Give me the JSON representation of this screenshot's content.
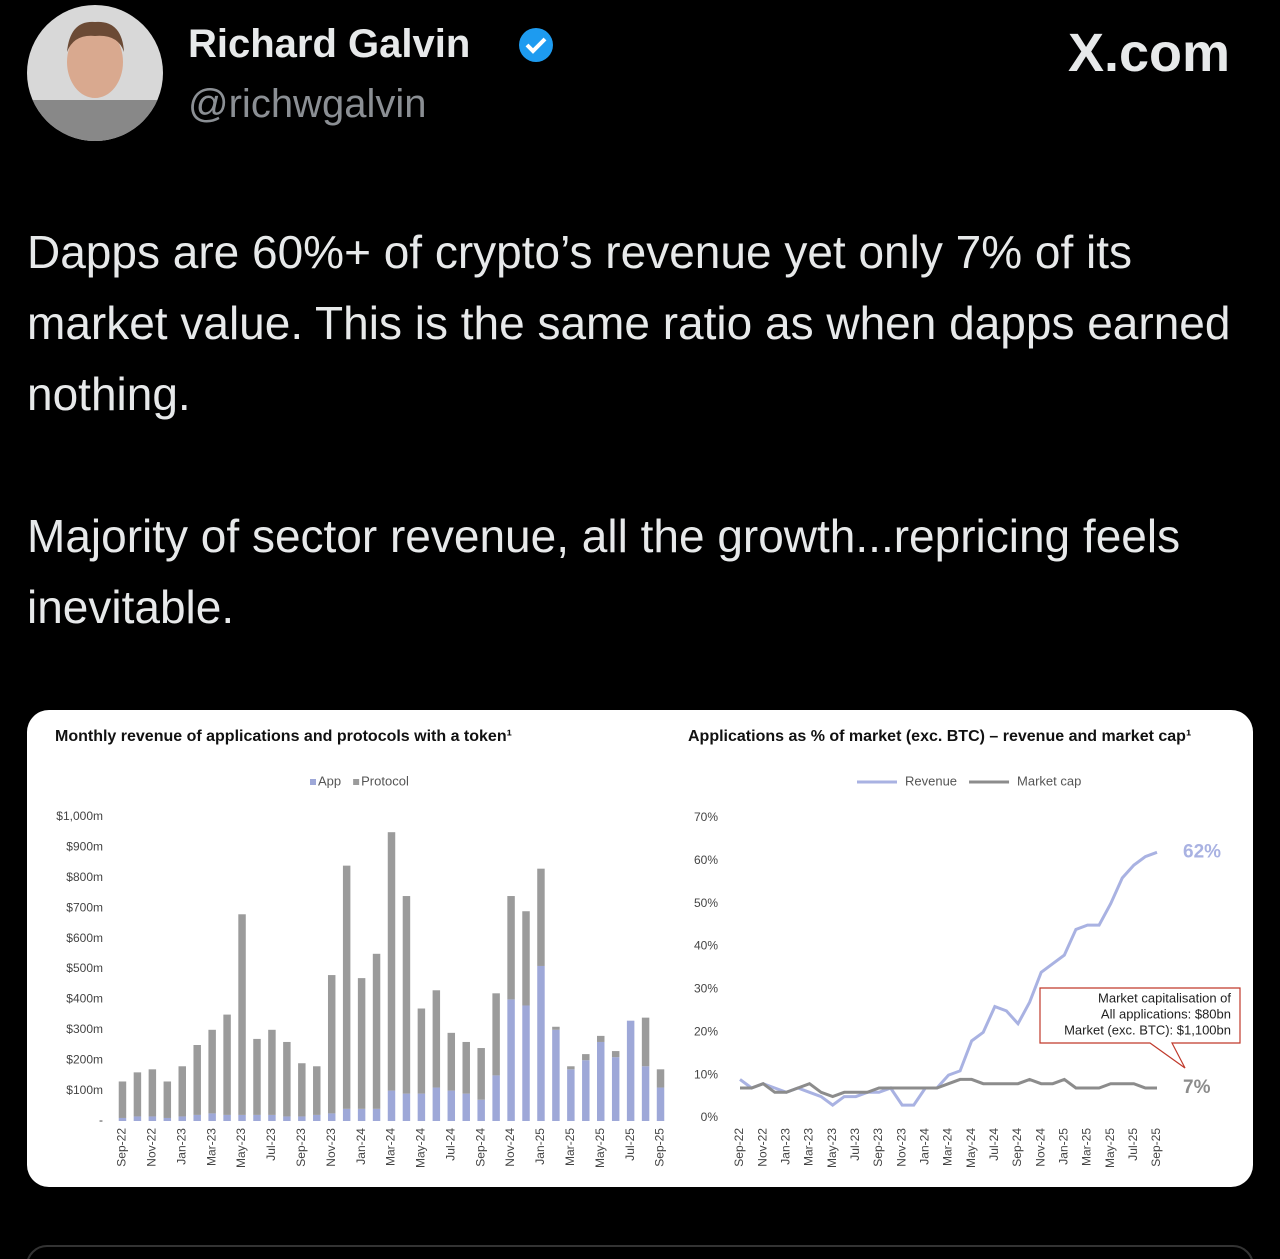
{
  "tweet": {
    "author": {
      "name": "Richard Galvin",
      "handle": "@richwgalvin"
    },
    "brand": "X.com",
    "text": [
      "Dapps are 60%+ of crypto’s revenue yet only 7% of its market value. This is the same ratio as when dapps earned nothing.",
      "Majority of sector revenue, all the growth...repricing feels inevitable."
    ]
  },
  "chart_data": [
    {
      "type": "bar",
      "stacked": true,
      "title": "Monthly revenue of applications and protocols with a token¹",
      "categories": [
        "Sep-22",
        null,
        "Nov-22",
        null,
        "Jan-23",
        null,
        "Mar-23",
        null,
        "May-23",
        null,
        "Jul-23",
        null,
        "Sep-23",
        null,
        "Nov-23",
        null,
        "Jan-24",
        null,
        "Mar-24",
        null,
        "May-24",
        null,
        "Jul-24",
        null,
        "Sep-24",
        null,
        "Nov-24",
        null,
        "Jan-25",
        null,
        "Mar-25",
        null,
        "May-25",
        null,
        "Jul-25",
        null,
        "Sep-25"
      ],
      "series": [
        {
          "name": "App",
          "color": "#9ea8d8",
          "values": [
            10,
            15,
            15,
            10,
            15,
            20,
            25,
            20,
            20,
            20,
            20,
            15,
            15,
            20,
            25,
            40,
            40,
            40,
            100,
            90,
            90,
            110,
            100,
            90,
            70,
            150,
            400,
            380,
            510,
            300,
            170,
            200,
            260,
            210,
            330,
            180,
            110
          ]
        },
        {
          "name": "Protocol",
          "color": "#9b9b9b",
          "values": [
            120,
            145,
            155,
            120,
            165,
            230,
            275,
            330,
            660,
            250,
            280,
            245,
            175,
            160,
            455,
            800,
            430,
            510,
            850,
            650,
            280,
            320,
            190,
            170,
            170,
            270,
            340,
            310,
            320,
            10,
            10,
            20,
            20,
            20,
            0,
            160,
            60
          ]
        }
      ],
      "ylim": [
        0,
        1000
      ],
      "yticks": [
        {
          "value": 0,
          "label": "-"
        },
        {
          "value": 100,
          "label": "$100m"
        },
        {
          "value": 200,
          "label": "$200m"
        },
        {
          "value": 300,
          "label": "$300m"
        },
        {
          "value": 400,
          "label": "$400m"
        },
        {
          "value": 500,
          "label": "$500m"
        },
        {
          "value": 600,
          "label": "$600m"
        },
        {
          "value": 700,
          "label": "$700m"
        },
        {
          "value": 800,
          "label": "$800m"
        },
        {
          "value": 900,
          "label": "$900m"
        },
        {
          "value": 1000,
          "label": "$1,000m"
        }
      ],
      "grid": false
    },
    {
      "type": "line",
      "title": "Applications as % of market (exc. BTC) – revenue and market cap¹",
      "categories": [
        "Sep-22",
        null,
        "Nov-22",
        null,
        "Jan-23",
        null,
        "Mar-23",
        null,
        "May-23",
        null,
        "Jul-23",
        null,
        "Sep-23",
        null,
        "Nov-23",
        null,
        "Jan-24",
        null,
        "Mar-24",
        null,
        "May-24",
        null,
        "Jul-24",
        null,
        "Sep-24",
        null,
        "Nov-24",
        null,
        "Jan-25",
        null,
        "Mar-25",
        null,
        "May-25",
        null,
        "Jul-25",
        null,
        "Sep-25"
      ],
      "series": [
        {
          "name": "Revenue",
          "color": "#a9b2e2",
          "values": [
            9,
            7,
            8,
            7,
            6,
            7,
            6,
            5,
            3,
            5,
            5,
            6,
            6,
            7,
            3,
            3,
            7,
            7,
            10,
            11,
            18,
            20,
            26,
            25,
            22,
            27,
            34,
            36,
            38,
            44,
            45,
            45,
            50,
            56,
            59,
            61,
            62
          ]
        },
        {
          "name": "Market cap",
          "color": "#8c8c8c",
          "values": [
            7,
            7,
            8,
            6,
            6,
            7,
            8,
            6,
            5,
            6,
            6,
            6,
            7,
            7,
            7,
            7,
            7,
            7,
            8,
            9,
            9,
            8,
            8,
            8,
            8,
            9,
            8,
            8,
            9,
            7,
            7,
            7,
            8,
            8,
            8,
            7,
            7
          ]
        }
      ],
      "end_labels": [
        "62%",
        "7%"
      ],
      "callout": [
        "Market capitalisation of",
        "All applications: $80bn",
        "Market (exc. BTC): $1,100bn"
      ],
      "ylim": [
        0,
        70
      ],
      "yticks": [
        {
          "value": 0,
          "label": "0%"
        },
        {
          "value": 10,
          "label": "10%"
        },
        {
          "value": 20,
          "label": "20%"
        },
        {
          "value": 30,
          "label": "30%"
        },
        {
          "value": 40,
          "label": "40%"
        },
        {
          "value": 50,
          "label": "50%"
        },
        {
          "value": 60,
          "label": "60%"
        },
        {
          "value": 70,
          "label": "70%"
        }
      ],
      "grid": false
    }
  ]
}
